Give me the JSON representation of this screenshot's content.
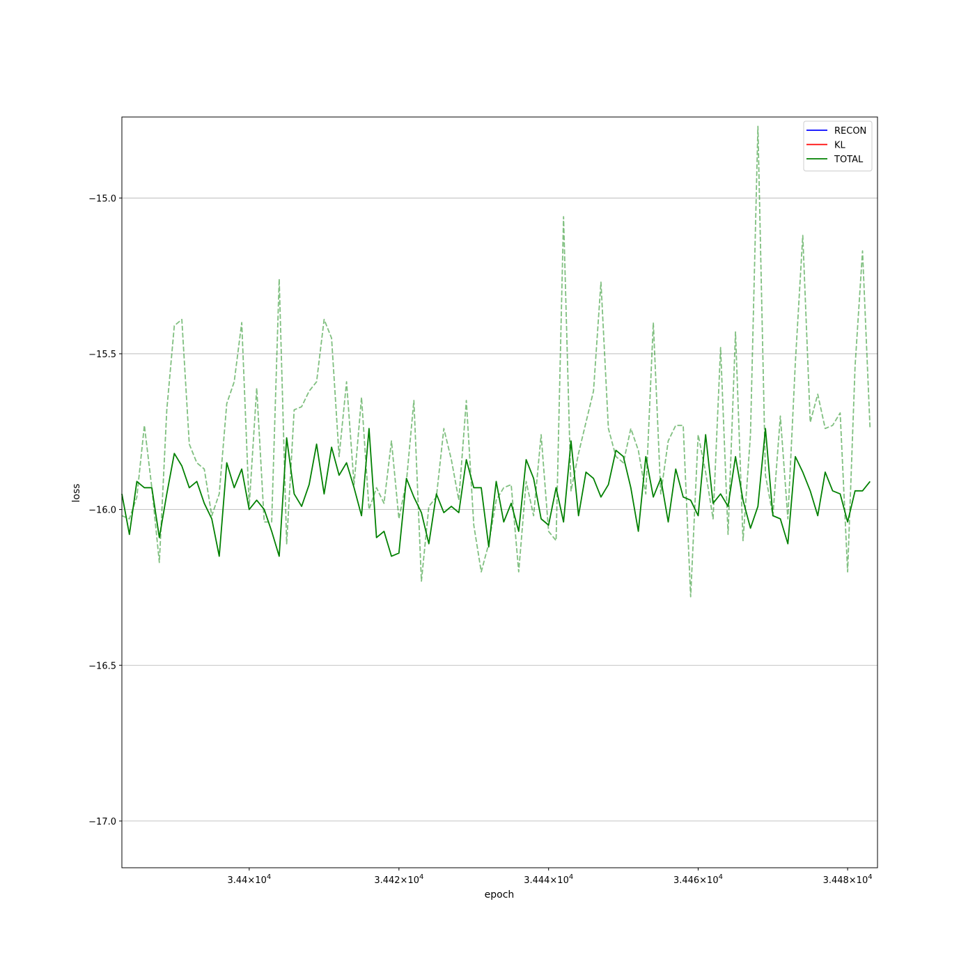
{
  "chart_data": {
    "type": "line",
    "xlabel": "epoch",
    "ylabel": "loss",
    "xscale": "log",
    "xlim": [
      34383,
      34484
    ],
    "ylim": [
      -17.15,
      -14.74
    ],
    "grid": "y",
    "legend_placement": "top-right",
    "x_ticks": [
      {
        "value": 34400,
        "mantissa": "3.44",
        "exponent": "4"
      },
      {
        "value": 34420,
        "mantissa": "3.442",
        "exponent": "4"
      },
      {
        "value": 34440,
        "mantissa": "3.444",
        "exponent": "4"
      },
      {
        "value": 34460,
        "mantissa": "3.446",
        "exponent": "4"
      },
      {
        "value": 34480,
        "mantissa": "3.448",
        "exponent": "4"
      }
    ],
    "y_ticks": [
      {
        "value": -15.0,
        "label": "−15.0"
      },
      {
        "value": -15.5,
        "label": "−15.5"
      },
      {
        "value": -16.0,
        "label": "−16.0"
      },
      {
        "value": -16.5,
        "label": "−16.5"
      },
      {
        "value": -17.0,
        "label": "−17.0"
      }
    ],
    "x_start": 34383,
    "x_step": 1,
    "series": [
      {
        "name": "RECON",
        "color": "#0000ff",
        "style": "solid",
        "values": []
      },
      {
        "name": "KL",
        "color": "#ff0000",
        "style": "solid",
        "values": []
      },
      {
        "name": "TOTAL",
        "color": "#008000",
        "style": "solid",
        "values": [
          -15.95,
          -16.08,
          -15.91,
          -15.93,
          -15.93,
          -16.09,
          -15.95,
          -15.82,
          -15.86,
          -15.93,
          -15.91,
          -15.98,
          -16.03,
          -16.15,
          -15.85,
          -15.93,
          -15.87,
          -16.0,
          -15.97,
          -16.0,
          -16.07,
          -16.15,
          -15.77,
          -15.95,
          -15.99,
          -15.92,
          -15.79,
          -15.95,
          -15.8,
          -15.89,
          -15.85,
          -15.93,
          -16.02,
          -15.74,
          -16.09,
          -16.07,
          -16.15,
          -16.14,
          -15.9,
          -15.96,
          -16.01,
          -16.11,
          -15.95,
          -16.01,
          -15.99,
          -16.01,
          -15.84,
          -15.93,
          -15.93,
          -16.12,
          -15.91,
          -16.04,
          -15.98,
          -16.07,
          -15.84,
          -15.9,
          -16.03,
          -16.05,
          -15.93,
          -16.04,
          -15.78,
          -16.02,
          -15.88,
          -15.9,
          -15.96,
          -15.92,
          -15.81,
          -15.83,
          -15.93,
          -16.07,
          -15.83,
          -15.96,
          -15.9,
          -16.04,
          -15.87,
          -15.96,
          -15.97,
          -16.02,
          -15.76,
          -15.98,
          -15.95,
          -15.99,
          -15.83,
          -15.97,
          -16.06,
          -15.99,
          -15.74,
          -16.02,
          -16.03,
          -16.11,
          -15.83,
          -15.88,
          -15.94,
          -16.02,
          -15.88,
          -15.94,
          -15.95,
          -16.04,
          -15.94,
          -15.94,
          -15.91
        ]
      },
      {
        "name": "",
        "color": "#008000",
        "style": "dashed",
        "opacity": 0.5,
        "values": [
          -16.02,
          -16.03,
          -15.96,
          -15.73,
          -15.93,
          -16.17,
          -15.68,
          -15.41,
          -15.39,
          -15.79,
          -15.85,
          -15.87,
          -16.02,
          -15.95,
          -15.66,
          -15.59,
          -15.4,
          -15.99,
          -15.61,
          -16.04,
          -16.04,
          -15.26,
          -16.11,
          -15.68,
          -15.67,
          -15.62,
          -15.59,
          -15.39,
          -15.45,
          -15.83,
          -15.59,
          -15.92,
          -15.64,
          -16.0,
          -15.93,
          -15.98,
          -15.78,
          -16.03,
          -15.91,
          -15.65,
          -16.23,
          -15.99,
          -15.96,
          -15.74,
          -15.84,
          -15.97,
          -15.65,
          -16.05,
          -16.2,
          -16.11,
          -15.97,
          -15.93,
          -15.92,
          -16.2,
          -15.91,
          -16.02,
          -15.76,
          -16.07,
          -16.1,
          -15.06,
          -15.94,
          -15.82,
          -15.72,
          -15.62,
          -15.27,
          -15.74,
          -15.83,
          -15.85,
          -15.74,
          -15.81,
          -15.95,
          -15.4,
          -15.95,
          -15.78,
          -15.73,
          -15.73,
          -16.28,
          -15.76,
          -15.88,
          -16.03,
          -15.48,
          -16.08,
          -15.43,
          -16.1,
          -15.76,
          -14.77,
          -15.89,
          -16.02,
          -15.7,
          -16.03,
          -15.53,
          -15.12,
          -15.72,
          -15.63,
          -15.74,
          -15.73,
          -15.69,
          -16.2,
          -15.54,
          -15.17,
          -15.74
        ]
      }
    ]
  }
}
